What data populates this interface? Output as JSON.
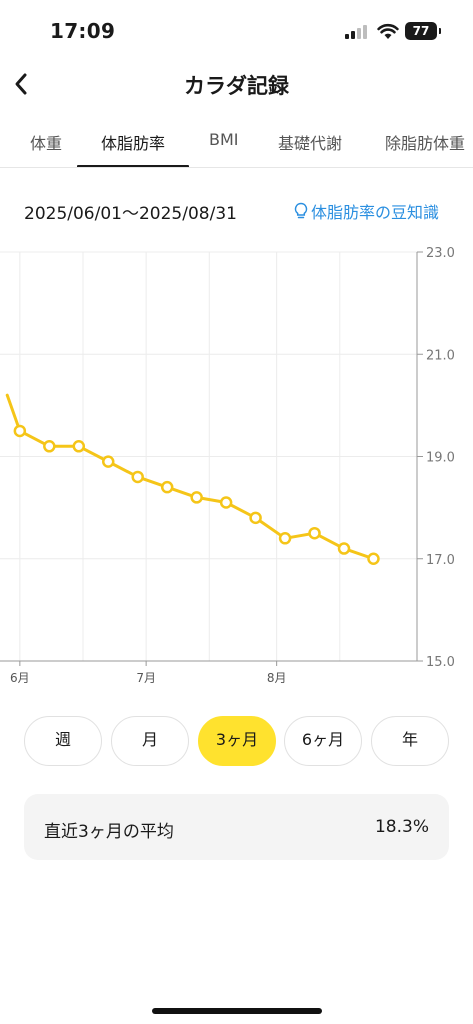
{
  "status_bar": {
    "time": "17:09",
    "battery": "77"
  },
  "header": {
    "title": "カラダ記録",
    "back_icon": "chevron-left-icon"
  },
  "tabs": [
    {
      "label": "体重",
      "active": false
    },
    {
      "label": "体脂肪率",
      "active": true
    },
    {
      "label": "BMI",
      "active": false
    },
    {
      "label": "基礎代謝",
      "active": false
    },
    {
      "label": "除脂肪体重",
      "active": false
    }
  ],
  "date_range": "2025/06/01〜2025/08/31",
  "tips": {
    "label": "体脂肪率の豆知識",
    "icon": "lightbulb-icon",
    "color": "#2b8fe0"
  },
  "chart_data": {
    "type": "line",
    "x_tick_labels": [
      "6月",
      "7月",
      "8月"
    ],
    "y_tick_labels": [
      "23.0",
      "21.0",
      "19.0",
      "17.0",
      "15.0"
    ],
    "ylim": [
      15.0,
      23.0
    ],
    "y_axis_position": "right",
    "grid": true,
    "series": [
      {
        "color": "#f5c518",
        "x": [
          "2025-05-29",
          "2025-06-01",
          "2025-06-08",
          "2025-06-15",
          "2025-06-22",
          "2025-06-29",
          "2025-07-06",
          "2025-07-13",
          "2025-07-20",
          "2025-07-27",
          "2025-08-03",
          "2025-08-10",
          "2025-08-17",
          "2025-08-24"
        ],
        "values": [
          20.2,
          19.5,
          19.2,
          19.2,
          18.9,
          18.6,
          18.4,
          18.2,
          18.1,
          17.8,
          17.4,
          17.5,
          17.2,
          17.0
        ]
      }
    ]
  },
  "periods": [
    {
      "label": "週",
      "active": false
    },
    {
      "label": "月",
      "active": false
    },
    {
      "label": "3ヶ月",
      "active": true
    },
    {
      "label": "6ヶ月",
      "active": false
    },
    {
      "label": "年",
      "active": false
    }
  ],
  "average": {
    "label": "直近3ヶ月の平均",
    "value": "18.3%"
  },
  "colors": {
    "accent": "#ffe22e",
    "line": "#f5c518",
    "link": "#2b8fe0"
  }
}
